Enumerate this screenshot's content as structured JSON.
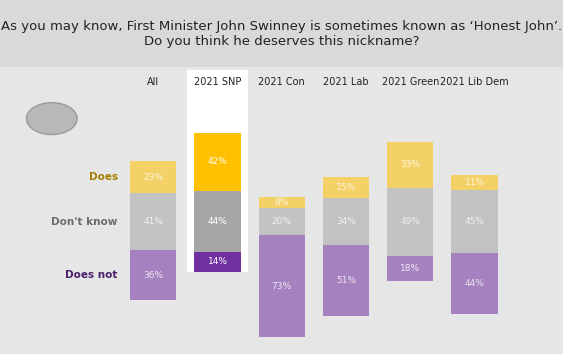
{
  "chart_data": {
    "type": "bar",
    "title": "As you may know, First Minister John Swinney is sometimes known as ‘Honest John’.\nDo you think he deserves this nickname?",
    "categories": [
      "All",
      "2021 SNP",
      "2021 Con",
      "2021 Lab",
      "2021 Green",
      "2021 Lib Dem"
    ],
    "series": [
      {
        "name": "Does",
        "color": "#ffc000",
        "values": [
          23,
          42,
          8,
          15,
          33,
          11
        ],
        "value_labels": [
          "23%",
          "42%",
          "8%",
          "15%",
          "33%",
          "11%"
        ]
      },
      {
        "name": "Don't know",
        "color": "#a6a6a6",
        "values": [
          41,
          44,
          20,
          34,
          49,
          45
        ],
        "value_labels": [
          "41%",
          "44%",
          "20%",
          "34%",
          "49%",
          "45%"
        ]
      },
      {
        "name": "Does not",
        "color": "#7030a0",
        "values": [
          36,
          14,
          73,
          51,
          18,
          44
        ],
        "value_labels": [
          "36%",
          "14%",
          "73%",
          "51%",
          "18%",
          "44%"
        ]
      }
    ],
    "stacked": true,
    "data_labels": true,
    "tick_labels": "x"
  }
}
